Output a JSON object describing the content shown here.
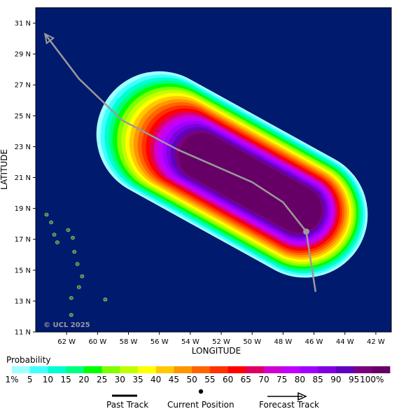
{
  "map": {
    "credit": "© UCL 2025",
    "x_axis_label": "LONGITUDE",
    "y_axis_label": "LATITUDE",
    "lat_ticks": [
      "11 N",
      "13 N",
      "15 N",
      "17 N",
      "19 N",
      "21 N",
      "23 N",
      "25 N",
      "27 N",
      "29 N",
      "31 N"
    ],
    "lon_ticks": [
      "62 W",
      "60 W",
      "58 W",
      "56 W",
      "54 W",
      "52 W",
      "50 W",
      "48 W",
      "46 W",
      "44 W",
      "42 W"
    ],
    "colors": {
      "ocean": "#001a6e",
      "land": "#3a8a20",
      "land_outline": "#c8c8c8",
      "track": "#9a9a9a"
    },
    "track_points_lonlat": [
      [
        63.4,
        30.3
      ],
      [
        61.2,
        27.4
      ],
      [
        58.4,
        24.7
      ],
      [
        54.8,
        22.8
      ],
      [
        50.0,
        20.7
      ],
      [
        48.0,
        19.4
      ],
      [
        46.5,
        17.5
      ],
      [
        45.9,
        13.6
      ]
    ],
    "current_position_lonlat": [
      46.5,
      17.5
    ],
    "storm_axis_lonlat": [
      [
        56.0,
        23.8
      ],
      [
        46.6,
        18.6
      ]
    ]
  },
  "legend": {
    "title": "Probability",
    "colors": [
      "#a0ffff",
      "#40ffff",
      "#00ffd0",
      "#00ff80",
      "#00ff00",
      "#80ff00",
      "#c0ff00",
      "#ffff00",
      "#ffc800",
      "#ff9600",
      "#ff6400",
      "#ff3200",
      "#ff0000",
      "#dd0060",
      "#d000d0",
      "#c000ff",
      "#a000ff",
      "#8000e0",
      "#6000c0",
      "#7a0080",
      "#660066"
    ],
    "labels": [
      "1%",
      "5",
      "10",
      "15",
      "20",
      "25",
      "30",
      "35",
      "40",
      "45",
      "50",
      "55",
      "60",
      "65",
      "70",
      "75",
      "80",
      "85",
      "90",
      "95",
      "100%"
    ]
  },
  "key": {
    "past_track": "Past Track",
    "current_position": "Current Position",
    "forecast_track": "Forecast Track"
  }
}
